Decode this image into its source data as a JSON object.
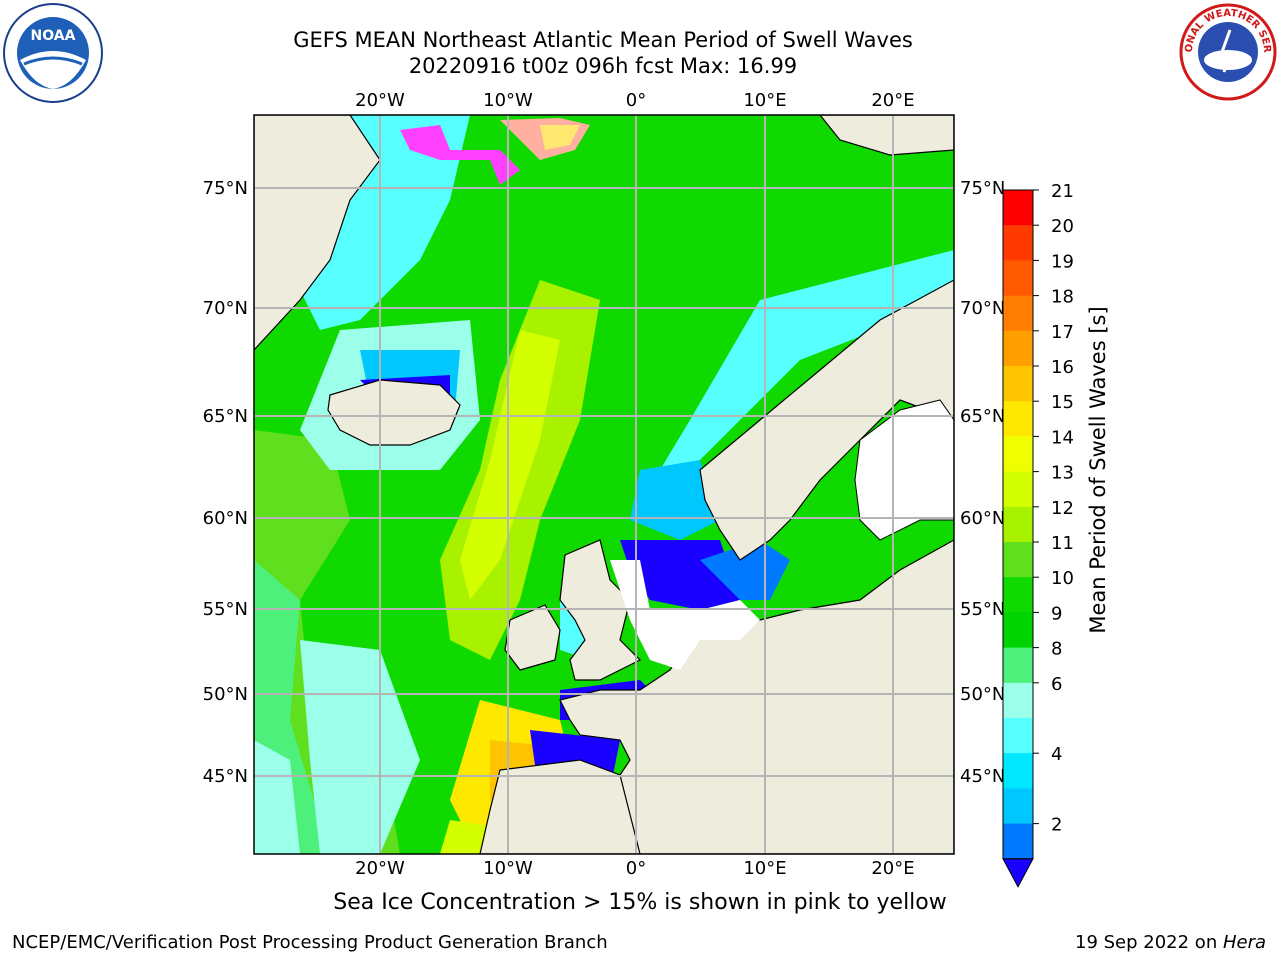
{
  "title": {
    "line1": "GEFS MEAN Northeast Atlantic Mean Period of Swell Waves",
    "line2": "20220916 t00z 096h fcst   Max: 16.99"
  },
  "map": {
    "top_lon_labels": [
      "20°W",
      "10°W",
      "0°",
      "10°E",
      "20°E"
    ],
    "bottom_lon_labels": [
      "20°W",
      "10°W",
      "0°",
      "10°E",
      "20°E"
    ],
    "left_lat_labels": [
      "75°N",
      "70°N",
      "65°N",
      "60°N",
      "55°N",
      "50°N",
      "45°N"
    ],
    "right_lat_labels": [
      "75°N",
      "70°N",
      "65°N",
      "60°N",
      "55°N",
      "50°N",
      "45°N"
    ],
    "land_color": "#eeecdc",
    "grid_color": "#b5b5b5"
  },
  "colorbar": {
    "label": "Mean Period of Swell Waves [s]",
    "ticks": [
      "21",
      "20",
      "19",
      "18",
      "17",
      "16",
      "15",
      "14",
      "13",
      "12",
      "11",
      "10",
      "9",
      "8",
      "6",
      "4",
      "2"
    ],
    "colors": [
      "#ff0000",
      "#ff3a00",
      "#ff5a00",
      "#ff7d00",
      "#ffa000",
      "#ffc400",
      "#ffe800",
      "#f0ff00",
      "#d4ff00",
      "#a8f200",
      "#5fdf1e",
      "#10d900",
      "#00d400",
      "#4cf07a",
      "#9cffe9",
      "#57ffff",
      "#00e8ff",
      "#00c8ff",
      "#0078ff"
    ],
    "extend_color": "#1a00ff"
  },
  "note": "Sea Ice Concentration > 15% is shown in pink to yellow",
  "footer": {
    "left": "NCEP/EMC/Verification Post Processing Product Generation Branch",
    "right_date": "19 Sep 2022 on ",
    "right_host": "Hera"
  },
  "logos": {
    "left": "NOAA",
    "right": "NATIONAL WEATHER SERVICE"
  }
}
